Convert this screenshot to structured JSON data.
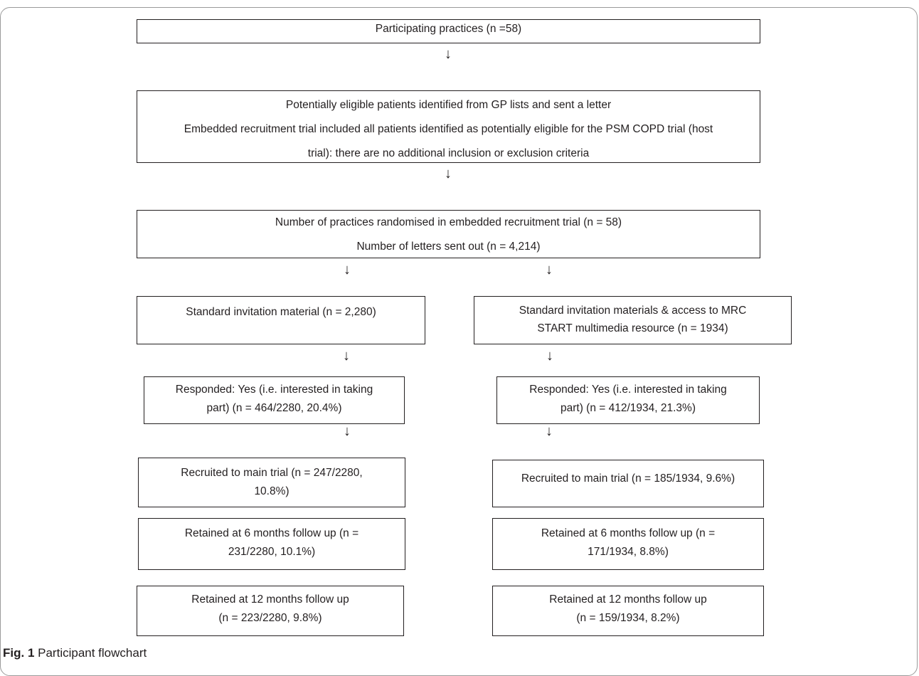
{
  "arrow_glyph": "↓",
  "caption": {
    "label": "Fig. 1",
    "text": "Participant flowchart"
  },
  "boxes": {
    "practices": "Participating practices (n =58)",
    "eligible": [
      "Potentially eligible patients identified from GP lists and sent a letter",
      "Embedded recruitment trial included all patients identified as potentially eligible for the PSM COPD trial (host",
      "trial): there are no additional inclusion or exclusion criteria"
    ],
    "randomised": [
      "Number of practices randomised in embedded recruitment trial (n = 58)",
      "Number of letters sent out (n = 4,214)"
    ],
    "left": {
      "invitation": "Standard invitation material (n = 2,280)",
      "responded": [
        "Responded: Yes (i.e. interested in taking",
        "part) (n = 464/2280, 20.4%)"
      ],
      "recruited": [
        "Recruited to main trial (n = 247/2280,",
        "10.8%)"
      ],
      "retained6": [
        "Retained at 6 months follow up (n =",
        "231/2280, 10.1%)"
      ],
      "retained12": [
        "Retained at 12 months follow up",
        "(n = 223/2280, 9.8%)"
      ]
    },
    "right": {
      "invitation": [
        "Standard invitation materials & access to MRC",
        "START multimedia resource (n = 1934)"
      ],
      "responded": [
        "Responded: Yes (i.e. interested in taking",
        "part) (n = 412/1934, 21.3%)"
      ],
      "recruited": "Recruited to main trial (n = 185/1934, 9.6%)",
      "retained6": [
        "Retained at 6 months follow up (n =",
        "171/1934, 8.8%)"
      ],
      "retained12": [
        "Retained at 12 months follow up",
        "(n = 159/1934, 8.2%)"
      ]
    }
  }
}
